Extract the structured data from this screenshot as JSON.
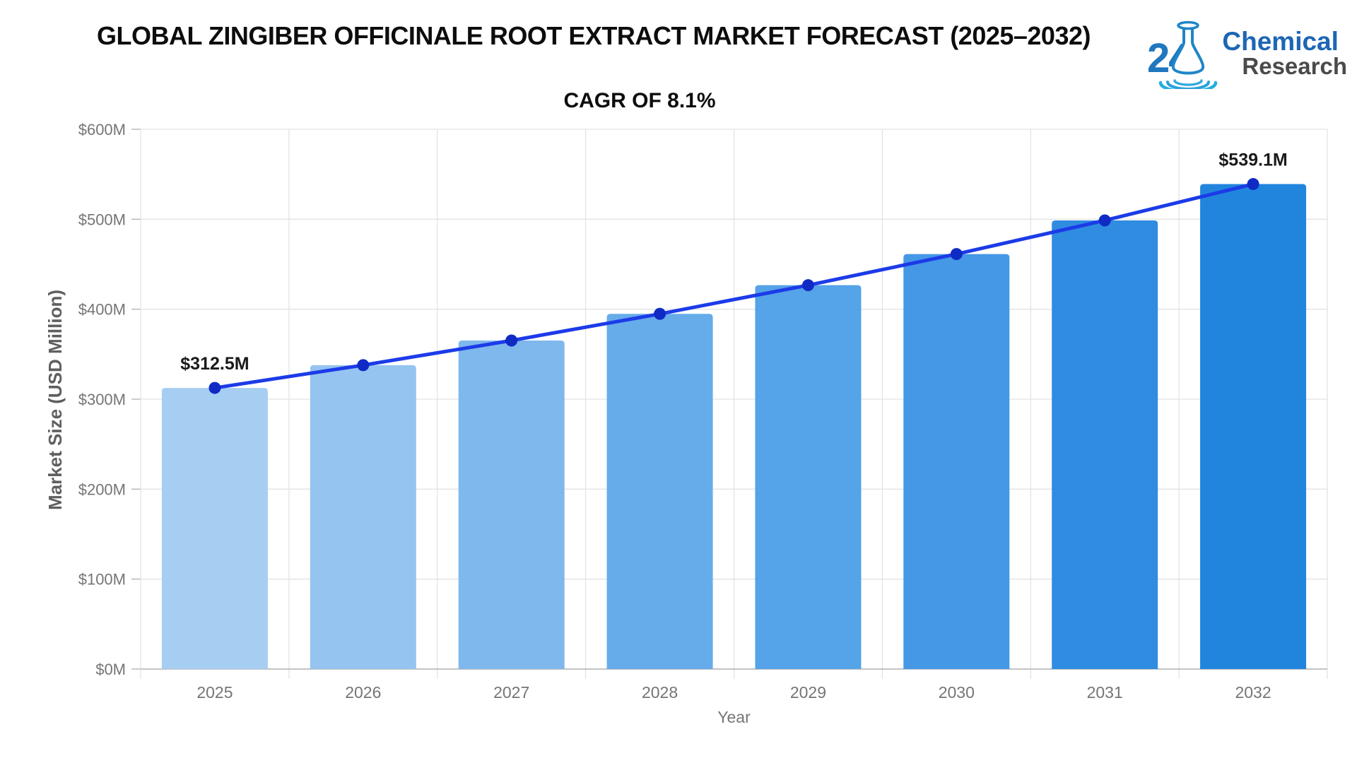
{
  "header": {
    "title": "GLOBAL ZINGIBER OFFICINALE ROOT EXTRACT MARKET FORECAST (2025–2032)",
    "logo": {
      "number": "24",
      "line1": "Chemical",
      "line2": "Research"
    }
  },
  "chart_data": {
    "type": "bar",
    "overlay": "line",
    "title": "CAGR OF 8.1%",
    "categories": [
      "2025",
      "2026",
      "2027",
      "2028",
      "2029",
      "2030",
      "2031",
      "2032"
    ],
    "values": [
      312.5,
      337.8,
      365.2,
      394.8,
      426.7,
      461.3,
      498.7,
      539.1
    ],
    "bar_colors": [
      "#A6CDF2",
      "#96C4F0",
      "#7FB8ED",
      "#66ACEA",
      "#55A3E8",
      "#4498E6",
      "#2F8CE1",
      "#2185DD"
    ],
    "line_color": "#1C3BE8",
    "point_color": "#0F2BC4",
    "xlabel": "Year",
    "ylabel": "Market Size (USD Million)",
    "ylim": [
      0,
      600
    ],
    "ytick_step": 100,
    "ytick_labels": [
      "$0M",
      "$100M",
      "$200M",
      "$300M",
      "$400M",
      "$500M",
      "$600M"
    ],
    "annotations": [
      {
        "category": "2025",
        "label": "$312.5M"
      },
      {
        "category": "2032",
        "label": "$539.1M"
      }
    ],
    "grid": true,
    "legend": "none",
    "colors": {
      "grid_line": "#E3E3E3",
      "axis_line": "#B0B0B0",
      "tick_text": "#757575",
      "annotation_text": "#1a1a1a"
    }
  }
}
